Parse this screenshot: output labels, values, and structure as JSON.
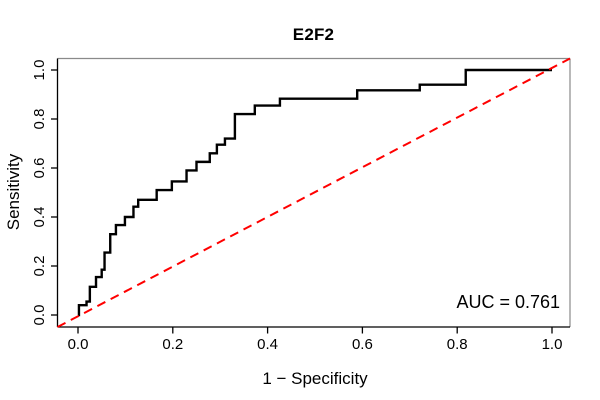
{
  "chart_data": {
    "type": "line",
    "title": "E2F2",
    "xlabel": "1 − Specificity",
    "ylabel": "Sensitivity",
    "xlim": [
      0,
      1
    ],
    "ylim": [
      0,
      1
    ],
    "x_ticks": [
      "0.0",
      "0.2",
      "0.4",
      "0.6",
      "0.8",
      "1.0"
    ],
    "y_ticks": [
      "0.0",
      "0.2",
      "0.4",
      "0.6",
      "0.8",
      "1.0"
    ],
    "grid": false,
    "legend": "none",
    "annotation": "AUC = 0.761",
    "auc": 0.761,
    "series": [
      {
        "name": "ROC curve",
        "color": "#000000",
        "style": "solid",
        "width": 2.4,
        "step": true,
        "points": [
          [
            0.0,
            0.0
          ],
          [
            0.002,
            0.0
          ],
          [
            0.002,
            0.04
          ],
          [
            0.018,
            0.04
          ],
          [
            0.018,
            0.055
          ],
          [
            0.025,
            0.055
          ],
          [
            0.025,
            0.115
          ],
          [
            0.038,
            0.115
          ],
          [
            0.038,
            0.155
          ],
          [
            0.05,
            0.155
          ],
          [
            0.05,
            0.185
          ],
          [
            0.056,
            0.185
          ],
          [
            0.056,
            0.255
          ],
          [
            0.068,
            0.255
          ],
          [
            0.068,
            0.33
          ],
          [
            0.08,
            0.33
          ],
          [
            0.08,
            0.367
          ],
          [
            0.099,
            0.367
          ],
          [
            0.099,
            0.4
          ],
          [
            0.117,
            0.4
          ],
          [
            0.117,
            0.442
          ],
          [
            0.127,
            0.442
          ],
          [
            0.127,
            0.47
          ],
          [
            0.166,
            0.47
          ],
          [
            0.166,
            0.51
          ],
          [
            0.198,
            0.51
          ],
          [
            0.198,
            0.545
          ],
          [
            0.229,
            0.545
          ],
          [
            0.229,
            0.59
          ],
          [
            0.25,
            0.59
          ],
          [
            0.25,
            0.625
          ],
          [
            0.278,
            0.625
          ],
          [
            0.278,
            0.66
          ],
          [
            0.293,
            0.66
          ],
          [
            0.293,
            0.695
          ],
          [
            0.31,
            0.695
          ],
          [
            0.31,
            0.72
          ],
          [
            0.331,
            0.72
          ],
          [
            0.331,
            0.82
          ],
          [
            0.373,
            0.82
          ],
          [
            0.373,
            0.855
          ],
          [
            0.426,
            0.855
          ],
          [
            0.426,
            0.883
          ],
          [
            0.589,
            0.883
          ],
          [
            0.589,
            0.917
          ],
          [
            0.721,
            0.917
          ],
          [
            0.721,
            0.94
          ],
          [
            0.818,
            0.94
          ],
          [
            0.818,
            1.0
          ],
          [
            1.0,
            1.0
          ]
        ]
      },
      {
        "name": "Reference diagonal",
        "color": "#ff0000",
        "style": "dashed",
        "width": 2,
        "step": false,
        "span_box": true,
        "points": [
          [
            0,
            0
          ],
          [
            1,
            1
          ]
        ]
      }
    ]
  },
  "colors": {
    "background": "#ffffff",
    "axis_dark": "#000000",
    "box_light": "#8a8a8a",
    "tick_label": "#000000"
  }
}
